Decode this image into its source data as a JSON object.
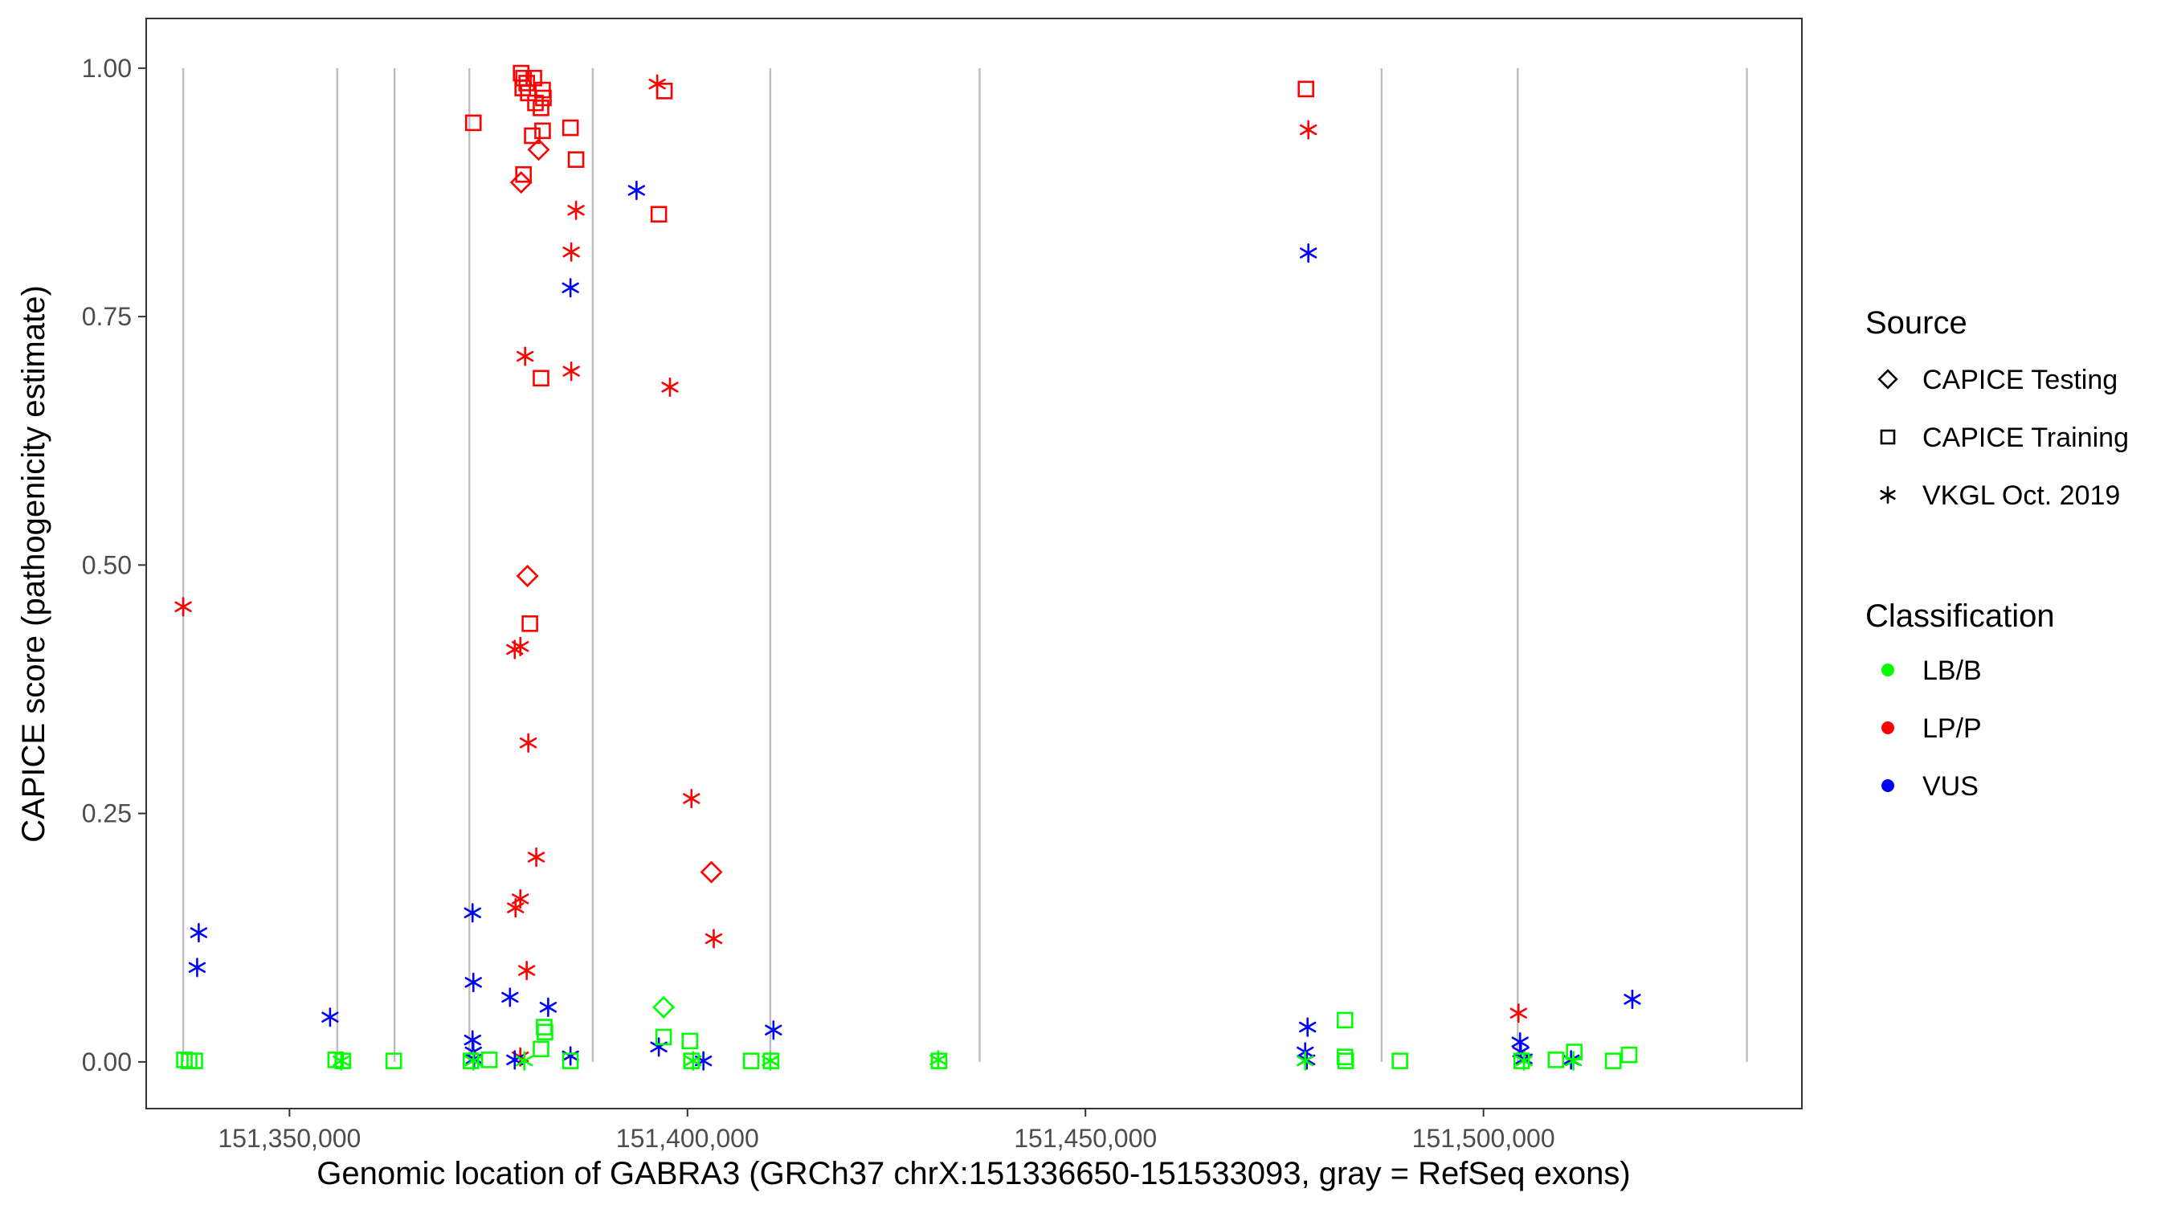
{
  "chart_data": {
    "type": "scatter",
    "title": "",
    "xlabel": "Genomic location of GABRA3 (GRCh37 chrX:151336650-151533093, gray = RefSeq exons)",
    "ylabel": "CAPICE score (pathogenicity estimate)",
    "xlim": [
      151332000,
      151540000
    ],
    "ylim": [
      -0.047,
      1.05
    ],
    "x_ticks": [
      151350000,
      151400000,
      151450000,
      151500000
    ],
    "x_tick_labels": [
      "151,350,000",
      "151,400,000",
      "151,450,000",
      "151,500,000"
    ],
    "y_ticks": [
      0,
      0.25,
      0.5,
      0.75,
      1.0
    ],
    "y_tick_labels": [
      "0.00",
      "0.25",
      "0.50",
      "0.75",
      "1.00"
    ],
    "exon_lines": [
      151336650,
      151356000,
      151363200,
      151372600,
      151388100,
      151410400,
      151436700,
      151487200,
      151504300,
      151533093
    ],
    "colors": {
      "LB/B": "#00ff00",
      "LP/P": "#ff0000",
      "VUS": "#0000ff",
      "exon": "#bebebe"
    },
    "legend": {
      "source_title": "Source",
      "source_entries": [
        {
          "label": "CAPICE Testing",
          "shape": "diamond"
        },
        {
          "label": "CAPICE Training",
          "shape": "square"
        },
        {
          "label": "VKGL Oct. 2019",
          "shape": "asterisk"
        }
      ],
      "class_title": "Classification",
      "class_entries": [
        {
          "label": "LB/B",
          "color": "#00ff00"
        },
        {
          "label": "LP/P",
          "color": "#ff0000"
        },
        {
          "label": "VUS",
          "color": "#0000ff"
        }
      ]
    },
    "series": [
      {
        "name": "LP/P CAPICE Training",
        "classification": "LP/P",
        "source": "CAPICE Training",
        "points": [
          [
            151379100,
            0.995
          ],
          [
            151379400,
            0.99
          ],
          [
            151379800,
            0.985
          ],
          [
            151379300,
            0.98
          ],
          [
            151380000,
            0.975
          ],
          [
            151380700,
            0.99
          ],
          [
            151381800,
            0.978
          ],
          [
            151381900,
            0.97
          ],
          [
            151380900,
            0.965
          ],
          [
            151381600,
            0.96
          ],
          [
            151373100,
            0.945
          ],
          [
            151380500,
            0.932
          ],
          [
            151381800,
            0.937
          ],
          [
            151385300,
            0.94
          ],
          [
            151386000,
            0.908
          ],
          [
            151379400,
            0.893
          ],
          [
            151397100,
            0.977
          ],
          [
            151396400,
            0.853
          ],
          [
            151381600,
            0.688
          ],
          [
            151380200,
            0.441
          ],
          [
            151477700,
            0.979
          ]
        ]
      },
      {
        "name": "LP/P CAPICE Testing",
        "classification": "LP/P",
        "source": "CAPICE Testing",
        "points": [
          [
            151381300,
            0.918
          ],
          [
            151379100,
            0.885
          ],
          [
            151379900,
            0.489
          ],
          [
            151403000,
            0.191
          ]
        ]
      },
      {
        "name": "LP/P VKGL Oct. 2019",
        "classification": "LP/P",
        "source": "VKGL Oct. 2019",
        "points": [
          [
            151396200,
            0.984
          ],
          [
            151386000,
            0.857
          ],
          [
            151385400,
            0.815
          ],
          [
            151379600,
            0.71
          ],
          [
            151385400,
            0.695
          ],
          [
            151397800,
            0.679
          ],
          [
            151336650,
            0.458
          ],
          [
            151379000,
            0.418
          ],
          [
            151378300,
            0.415
          ],
          [
            151380000,
            0.321
          ],
          [
            151400500,
            0.265
          ],
          [
            151381000,
            0.206
          ],
          [
            151379000,
            0.164
          ],
          [
            151378400,
            0.155
          ],
          [
            151403300,
            0.124
          ],
          [
            151379800,
            0.092
          ],
          [
            151478000,
            0.938
          ],
          [
            151504400,
            0.049
          ],
          [
            151379000,
            0.005
          ]
        ]
      },
      {
        "name": "VUS VKGL Oct. 2019",
        "classification": "VUS",
        "source": "VKGL Oct. 2019",
        "points": [
          [
            151338600,
            0.13
          ],
          [
            151338400,
            0.095
          ],
          [
            151355100,
            0.045
          ],
          [
            151373000,
            0.15
          ],
          [
            151373100,
            0.08
          ],
          [
            151373000,
            0.022
          ],
          [
            151373100,
            0.01
          ],
          [
            151373200,
            0.003
          ],
          [
            151377700,
            0.065
          ],
          [
            151382500,
            0.055
          ],
          [
            151378300,
            0.002
          ],
          [
            151385300,
            0.779
          ],
          [
            151385300,
            0.006
          ],
          [
            151393600,
            0.877
          ],
          [
            151396400,
            0.015
          ],
          [
            151402000,
            0.001
          ],
          [
            151410800,
            0.032
          ],
          [
            151478000,
            0.814
          ],
          [
            151477900,
            0.035
          ],
          [
            151477600,
            0.01
          ],
          [
            151477800,
            0.002
          ],
          [
            151504600,
            0.02
          ],
          [
            151504700,
            0.01
          ],
          [
            151505100,
            0.003
          ],
          [
            151511000,
            0.002
          ],
          [
            151518700,
            0.063
          ]
        ]
      },
      {
        "name": "LB/B CAPICE Training",
        "classification": "LB/B",
        "source": "CAPICE Training",
        "points": [
          [
            151336800,
            0.002
          ],
          [
            151337400,
            0.001
          ],
          [
            151338100,
            0.001
          ],
          [
            151355800,
            0.002
          ],
          [
            151356700,
            0.001
          ],
          [
            151363100,
            0.001
          ],
          [
            151372800,
            0.001
          ],
          [
            151375100,
            0.002
          ],
          [
            151382000,
            0.035
          ],
          [
            151382100,
            0.03
          ],
          [
            151381600,
            0.013
          ],
          [
            151385300,
            0.001
          ],
          [
            151397000,
            0.025
          ],
          [
            151400300,
            0.021
          ],
          [
            151400500,
            0.001
          ],
          [
            151408000,
            0.001
          ],
          [
            151410500,
            0.001
          ],
          [
            151431600,
            0.001
          ],
          [
            151482600,
            0.042
          ],
          [
            151482600,
            0.005
          ],
          [
            151482700,
            0.001
          ],
          [
            151489500,
            0.001
          ],
          [
            151504800,
            0.001
          ],
          [
            151509100,
            0.002
          ],
          [
            151511400,
            0.01
          ],
          [
            151516300,
            0.001
          ],
          [
            151518300,
            0.007
          ]
        ]
      },
      {
        "name": "LB/B CAPICE Testing",
        "classification": "LB/B",
        "source": "CAPICE Testing",
        "points": [
          [
            151397000,
            0.055
          ]
        ]
      },
      {
        "name": "LB/B VKGL Oct. 2019",
        "classification": "LB/B",
        "source": "VKGL Oct. 2019",
        "points": [
          [
            151356500,
            0.001
          ],
          [
            151373100,
            0.001
          ],
          [
            151379500,
            0.001
          ],
          [
            151400700,
            0.001
          ],
          [
            151410400,
            0.001
          ],
          [
            151431500,
            0.002
          ],
          [
            151477600,
            0.001
          ],
          [
            151505100,
            0.001
          ],
          [
            151511300,
            0.001
          ]
        ]
      }
    ]
  }
}
